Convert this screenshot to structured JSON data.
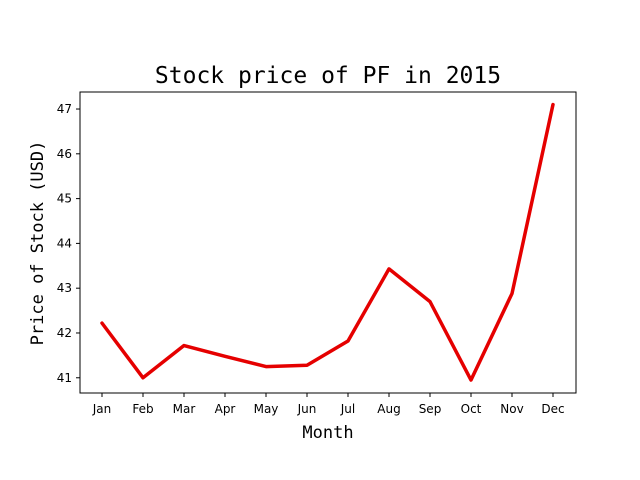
{
  "chart_data": {
    "type": "line",
    "title": "Stock price of PF in 2015",
    "xlabel": "Month",
    "ylabel": "Price of Stock (USD)",
    "categories": [
      "Jan",
      "Feb",
      "Mar",
      "Apr",
      "May",
      "Jun",
      "Jul",
      "Aug",
      "Sep",
      "Oct",
      "Nov",
      "Dec"
    ],
    "series": [
      {
        "values": [
          42.22,
          41.0,
          41.72,
          41.48,
          41.25,
          41.28,
          41.82,
          43.43,
          42.7,
          40.95,
          42.88,
          47.1
        ],
        "color": "#e50000"
      }
    ],
    "yticks": [
      41,
      42,
      43,
      44,
      45,
      46,
      47
    ],
    "ylim": [
      40.66,
      47.38
    ],
    "grid": false,
    "legend": "none"
  }
}
